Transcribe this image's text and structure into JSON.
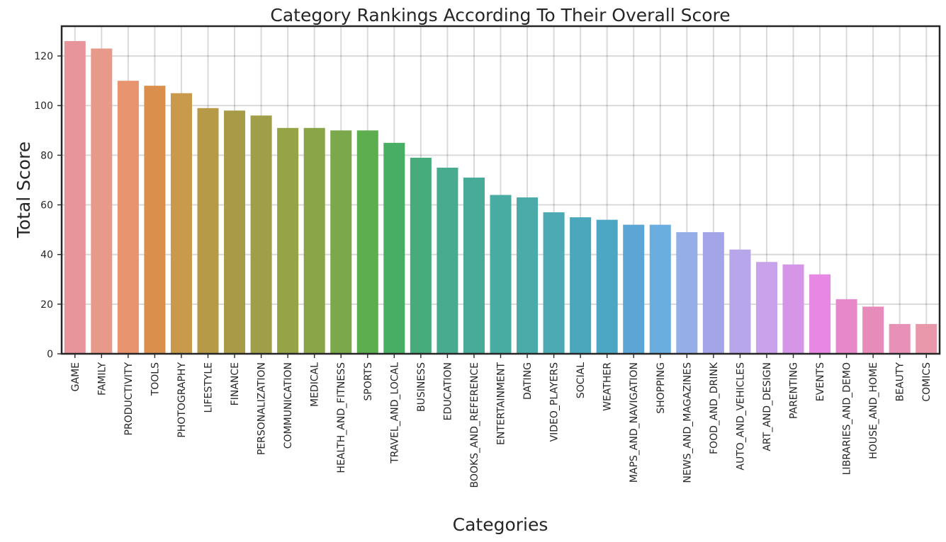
{
  "chart_data": {
    "type": "bar",
    "title": "Category Rankings According To Their Overall Score",
    "xlabel": "Categories",
    "ylabel": "Total Score",
    "ylim": [
      0,
      132
    ],
    "yticks": [
      0,
      20,
      40,
      60,
      80,
      100,
      120
    ],
    "grid": true,
    "legend": "none",
    "categories": [
      "GAME",
      "FAMILY",
      "PRODUCTIVITY",
      "TOOLS",
      "PHOTOGRAPHY",
      "LIFESTYLE",
      "FINANCE",
      "PERSONALIZATION",
      "COMMUNICATION",
      "MEDICAL",
      "HEALTH_AND_FITNESS",
      "SPORTS",
      "TRAVEL_AND_LOCAL",
      "BUSINESS",
      "EDUCATION",
      "BOOKS_AND_REFERENCE",
      "ENTERTAINMENT",
      "DATING",
      "VIDEO_PLAYERS",
      "SOCIAL",
      "WEATHER",
      "MAPS_AND_NAVIGATION",
      "SHOPPING",
      "NEWS_AND_MAGAZINES",
      "FOOD_AND_DRINK",
      "AUTO_AND_VEHICLES",
      "ART_AND_DESIGN",
      "PARENTING",
      "EVENTS",
      "LIBRARIES_AND_DEMO",
      "HOUSE_AND_HOME",
      "BEAUTY",
      "COMICS"
    ],
    "values": [
      126,
      123,
      110,
      108,
      105,
      99,
      98,
      96,
      91,
      91,
      90,
      90,
      85,
      79,
      75,
      71,
      64,
      63,
      57,
      55,
      54,
      52,
      52,
      49,
      49,
      42,
      37,
      36,
      32,
      22,
      19,
      12,
      12
    ],
    "colors": [
      "#e8949b",
      "#e89a8a",
      "#e8946f",
      "#da8f4d",
      "#c99a4b",
      "#b69a48",
      "#a89b47",
      "#a09e48",
      "#97a347",
      "#8aa547",
      "#7aa84a",
      "#5cae4e",
      "#47ae63",
      "#47ac7c",
      "#48ab8f",
      "#48aa98",
      "#49aca3",
      "#4aaba9",
      "#4baab4",
      "#4ba8bc",
      "#4ca7c4",
      "#5ba6d4",
      "#6aaee0",
      "#95aee8",
      "#a3a5e8",
      "#b8a6ea",
      "#c8a2ea",
      "#d596e7",
      "#e789e4",
      "#e788cb",
      "#e78bba",
      "#e791b6",
      "#e898aa"
    ]
  }
}
